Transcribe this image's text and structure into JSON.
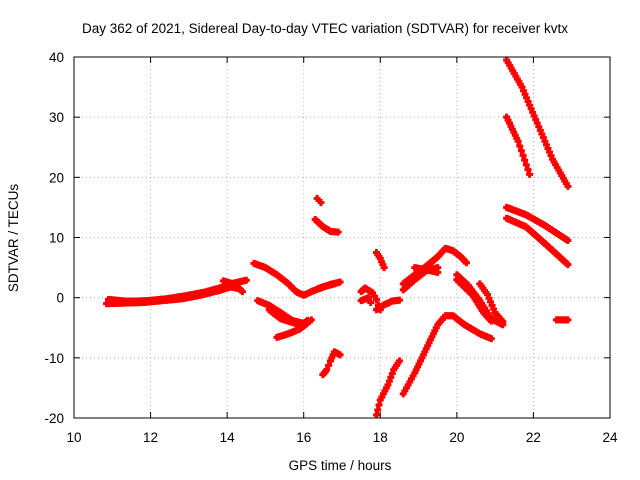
{
  "chart_data": {
    "type": "scatter",
    "title": "Day 362 of 2021, Sidereal Day-to-day VTEC variation (SDTVAR) for receiver kvtx",
    "xlabel": "GPS time / hours",
    "ylabel": "SDTVAR / TECUs",
    "xlim": [
      10,
      24
    ],
    "ylim": [
      -20,
      40
    ],
    "xticks": [
      "10",
      "12",
      "14",
      "16",
      "18",
      "20",
      "22",
      "24"
    ],
    "yticks": [
      "-20",
      "-10",
      "0",
      "10",
      "20",
      "30",
      "40"
    ],
    "grid": true,
    "marker": "plus",
    "color": "#ff0000",
    "series": [
      {
        "name": "track-1",
        "points": [
          [
            10.85,
            -1.0
          ],
          [
            11.3,
            -0.9
          ],
          [
            11.8,
            -0.8
          ],
          [
            12.3,
            -0.5
          ],
          [
            12.8,
            -0.2
          ],
          [
            13.3,
            0.4
          ],
          [
            13.8,
            1.2
          ],
          [
            14.1,
            1.8
          ],
          [
            14.3,
            1.5
          ]
        ]
      },
      {
        "name": "track-2",
        "points": [
          [
            10.9,
            -0.3
          ],
          [
            11.4,
            -0.6
          ],
          [
            11.9,
            -0.5
          ],
          [
            12.4,
            -0.2
          ],
          [
            12.9,
            0.3
          ],
          [
            13.4,
            0.9
          ],
          [
            13.8,
            1.6
          ],
          [
            14.1,
            2.3
          ],
          [
            14.5,
            2.9
          ]
        ]
      },
      {
        "name": "track-3",
        "points": [
          [
            13.9,
            2.8
          ],
          [
            14.2,
            2.2
          ],
          [
            14.4,
            1.0
          ]
        ]
      },
      {
        "name": "track-4",
        "points": [
          [
            14.7,
            5.7
          ],
          [
            15.0,
            5.0
          ],
          [
            15.3,
            3.8
          ],
          [
            15.6,
            2.3
          ],
          [
            15.8,
            1.0
          ],
          [
            16.0,
            0.4
          ],
          [
            16.2,
            1.0
          ],
          [
            16.5,
            1.8
          ],
          [
            16.8,
            2.3
          ]
        ]
      },
      {
        "name": "track-5",
        "points": [
          [
            14.8,
            -0.5
          ],
          [
            15.1,
            -1.3
          ],
          [
            15.4,
            -2.5
          ],
          [
            15.7,
            -3.8
          ],
          [
            16.0,
            -4.3
          ],
          [
            16.1,
            -3.8
          ]
        ]
      },
      {
        "name": "track-6",
        "points": [
          [
            15.1,
            -2.0
          ],
          [
            15.4,
            -3.5
          ],
          [
            15.8,
            -4.3
          ]
        ]
      },
      {
        "name": "track-7",
        "points": [
          [
            15.3,
            -6.6
          ],
          [
            15.6,
            -6.0
          ],
          [
            15.9,
            -5.2
          ],
          [
            16.1,
            -4.2
          ],
          [
            16.2,
            -3.7
          ]
        ]
      },
      {
        "name": "track-8",
        "points": [
          [
            16.3,
            13.0
          ],
          [
            16.5,
            11.8
          ],
          [
            16.7,
            11.0
          ],
          [
            16.9,
            10.9
          ]
        ]
      },
      {
        "name": "track-9",
        "points": [
          [
            16.35,
            16.5
          ],
          [
            16.45,
            15.8
          ]
        ]
      },
      {
        "name": "track-10",
        "points": [
          [
            16.5,
            -12.8
          ],
          [
            16.6,
            -12.0
          ],
          [
            16.7,
            -10.5
          ],
          [
            16.8,
            -9.0
          ],
          [
            16.95,
            -9.5
          ]
        ]
      },
      {
        "name": "track-11",
        "points": [
          [
            16.4,
            1.5
          ],
          [
            16.7,
            2.2
          ],
          [
            16.95,
            2.6
          ]
        ]
      },
      {
        "name": "track-12",
        "points": [
          [
            17.5,
            1.0
          ],
          [
            17.6,
            1.6
          ],
          [
            17.8,
            0.8
          ],
          [
            17.9,
            -0.3
          ],
          [
            17.95,
            -1.2
          ],
          [
            18.0,
            -2.0
          ]
        ]
      },
      {
        "name": "track-13",
        "points": [
          [
            17.5,
            -0.5
          ],
          [
            17.7,
            0.0
          ],
          [
            17.75,
            -0.8
          ]
        ]
      },
      {
        "name": "track-14",
        "points": [
          [
            17.9,
            7.5
          ],
          [
            18.0,
            6.5
          ],
          [
            18.1,
            5.0
          ]
        ]
      },
      {
        "name": "track-15",
        "points": [
          [
            17.9,
            -2.0
          ],
          [
            18.1,
            -1.2
          ],
          [
            18.3,
            -0.6
          ],
          [
            18.5,
            -0.4
          ]
        ]
      },
      {
        "name": "track-16",
        "points": [
          [
            17.9,
            -19.5
          ],
          [
            18.0,
            -17.0
          ],
          [
            18.2,
            -14.5
          ],
          [
            18.35,
            -12.0
          ],
          [
            18.5,
            -10.5
          ]
        ]
      },
      {
        "name": "track-17",
        "points": [
          [
            18.6,
            -16.0
          ],
          [
            18.9,
            -12.5
          ],
          [
            19.2,
            -8.5
          ],
          [
            19.5,
            -4.5
          ],
          [
            19.7,
            -3.0
          ],
          [
            19.9,
            -3.0
          ],
          [
            20.2,
            -4.5
          ],
          [
            20.6,
            -6.0
          ],
          [
            20.9,
            -6.8
          ]
        ]
      },
      {
        "name": "track-18",
        "points": [
          [
            18.6,
            2.3
          ],
          [
            18.9,
            3.8
          ],
          [
            19.2,
            5.2
          ],
          [
            19.5,
            6.8
          ],
          [
            19.7,
            8.2
          ],
          [
            19.9,
            7.8
          ],
          [
            20.1,
            6.8
          ],
          [
            20.25,
            5.8
          ]
        ]
      },
      {
        "name": "track-19",
        "points": [
          [
            18.6,
            1.3
          ],
          [
            18.9,
            3.0
          ],
          [
            19.2,
            4.5
          ],
          [
            19.5,
            5.0
          ]
        ]
      },
      {
        "name": "track-20",
        "points": [
          [
            18.9,
            5.0
          ],
          [
            19.3,
            4.5
          ],
          [
            19.5,
            4.2
          ]
        ]
      },
      {
        "name": "track-21",
        "points": [
          [
            20.0,
            3.8
          ],
          [
            20.3,
            2.0
          ],
          [
            20.6,
            -0.5
          ],
          [
            20.9,
            -3.5
          ],
          [
            21.2,
            -4.5
          ]
        ]
      },
      {
        "name": "track-22",
        "points": [
          [
            20.0,
            3.0
          ],
          [
            20.4,
            0.5
          ],
          [
            20.7,
            -2.5
          ],
          [
            20.9,
            -3.9
          ]
        ]
      },
      {
        "name": "track-23",
        "points": [
          [
            20.6,
            2.3
          ],
          [
            20.8,
            0.5
          ],
          [
            21.0,
            -2.5
          ],
          [
            21.2,
            -4.0
          ]
        ]
      },
      {
        "name": "track-24",
        "points": [
          [
            21.3,
            39.5
          ],
          [
            21.7,
            35.0
          ],
          [
            22.1,
            29.0
          ],
          [
            22.5,
            23.0
          ],
          [
            22.9,
            18.5
          ]
        ]
      },
      {
        "name": "track-25",
        "points": [
          [
            21.3,
            30.0
          ],
          [
            21.6,
            26.0
          ],
          [
            21.9,
            20.5
          ]
        ]
      },
      {
        "name": "track-26",
        "points": [
          [
            21.3,
            15.0
          ],
          [
            21.8,
            13.8
          ],
          [
            22.3,
            12.0
          ],
          [
            22.9,
            9.5
          ]
        ]
      },
      {
        "name": "track-27",
        "points": [
          [
            21.3,
            13.2
          ],
          [
            21.8,
            11.8
          ],
          [
            22.3,
            9.0
          ],
          [
            22.9,
            5.5
          ]
        ]
      },
      {
        "name": "track-28",
        "points": [
          [
            22.6,
            -3.7
          ],
          [
            22.9,
            -3.7
          ]
        ]
      }
    ]
  }
}
